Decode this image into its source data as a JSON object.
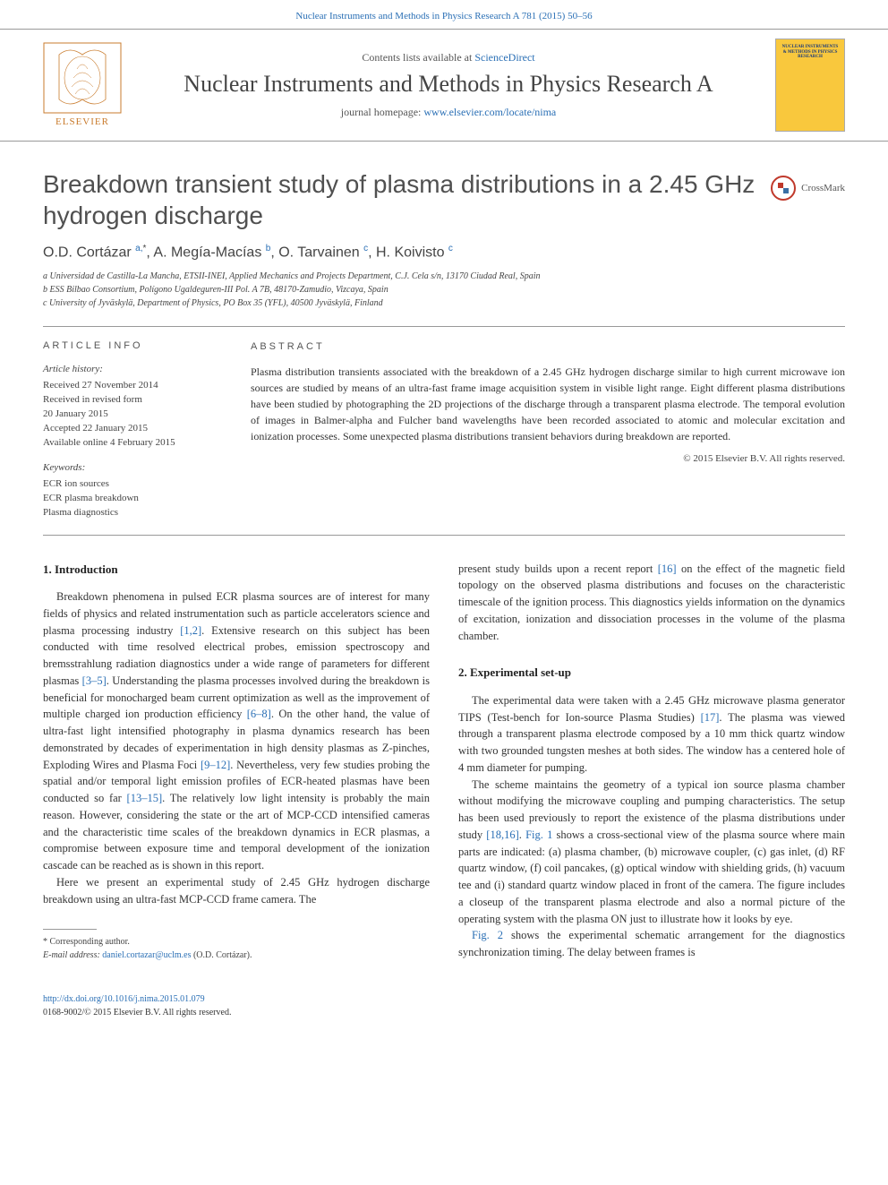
{
  "header_link": "Nuclear Instruments and Methods in Physics Research A 781 (2015) 50–56",
  "masthead": {
    "contents_prefix": "Contents lists available at ",
    "contents_link": "ScienceDirect",
    "journal_name": "Nuclear Instruments and Methods in Physics Research A",
    "homepage_prefix": "journal homepage: ",
    "homepage_url": "www.elsevier.com/locate/nima",
    "publisher": "ELSEVIER",
    "cover_text": "NUCLEAR INSTRUMENTS & METHODS IN PHYSICS RESEARCH"
  },
  "article": {
    "title": "Breakdown transient study of plasma distributions in a 2.45 GHz hydrogen discharge",
    "crossmark_label": "CrossMark",
    "authors_html": "O.D. Cortázar <sup><a class='ref'>a,</a>*</sup>, A. Megía-Macías <sup><a class='ref'>b</a></sup>, O. Tarvainen <sup><a class='ref'>c</a></sup>, H. Koivisto <sup><a class='ref'>c</a></sup>",
    "affiliations": [
      "a Universidad de Castilla-La Mancha, ETSII-INEI, Applied Mechanics and Projects Department, C.J. Cela s/n, 13170 Ciudad Real, Spain",
      "b ESS Bilbao Consortium, Polígono Ugaldeguren-III Pol. A 7B, 48170-Zamudio, Vizcaya, Spain",
      "c University of Jyväskylä, Department of Physics, PO Box 35 (YFL), 40500 Jyväskylä, Finland"
    ]
  },
  "info": {
    "left_heading": "article info",
    "history_label": "Article history:",
    "history": [
      "Received 27 November 2014",
      "Received in revised form",
      "20 January 2015",
      "Accepted 22 January 2015",
      "Available online 4 February 2015"
    ],
    "keywords_label": "Keywords:",
    "keywords": [
      "ECR ion sources",
      "ECR plasma breakdown",
      "Plasma diagnostics"
    ],
    "right_heading": "abstract",
    "abstract": "Plasma distribution transients associated with the breakdown of a 2.45 GHz hydrogen discharge similar to high current microwave ion sources are studied by means of an ultra-fast frame image acquisition system in visible light range. Eight different plasma distributions have been studied by photographing the 2D projections of the discharge through a transparent plasma electrode. The temporal evolution of images in Balmer-alpha and Fulcher band wavelengths have been recorded associated to atomic and molecular excitation and ionization processes. Some unexpected plasma distributions transient behaviors during breakdown are reported.",
    "copyright": "© 2015 Elsevier B.V. All rights reserved."
  },
  "body": {
    "sec1_heading": "1.  Introduction",
    "sec1_p1": "Breakdown phenomena in pulsed ECR plasma sources are of interest for many fields of physics and related instrumentation such as particle accelerators science and plasma processing industry [1,2]. Extensive research on this subject has been conducted with time resolved electrical probes, emission spectroscopy and bremsstrahlung radiation diagnostics under a wide range of parameters for different plasmas [3–5]. Understanding the plasma processes involved during the breakdown is beneficial for monocharged beam current optimization as well as the improvement of multiple charged ion production efficiency [6–8]. On the other hand, the value of ultra-fast light intensified photography in plasma dynamics research has been demonstrated by decades of experimentation in high density plasmas as Z-pinches, Exploding Wires and Plasma Foci [9–12]. Nevertheless, very few studies probing the spatial and/or temporal light emission profiles of ECR-heated plasmas have been conducted so far [13–15]. The relatively low light intensity is probably the main reason. However, considering the state or the art of MCP-CCD intensified cameras and the characteristic time scales of the breakdown dynamics in ECR plasmas, a compromise between exposure time and temporal development of the ionization cascade can be reached as is shown in this report.",
    "sec1_p2": "Here we present an experimental study of 2.45 GHz hydrogen discharge breakdown using an ultra-fast MCP-CCD frame camera. The",
    "sec1_p3": "present study builds upon a recent report [16] on the effect of the magnetic field topology on the observed plasma distributions and focuses on the characteristic timescale of the ignition process. This diagnostics yields information on the dynamics of excitation, ionization and dissociation processes in the volume of the plasma chamber.",
    "sec2_heading": "2.  Experimental set-up",
    "sec2_p1": "The experimental data were taken with a 2.45 GHz microwave plasma generator TIPS (Test-bench for Ion-source Plasma Studies) [17]. The plasma was viewed through a transparent plasma electrode composed by a 10 mm thick quartz window with two grounded tungsten meshes at both sides. The window has a centered hole of 4 mm diameter for pumping.",
    "sec2_p2": "The scheme maintains the geometry of a typical ion source plasma chamber without modifying the microwave coupling and pumping characteristics. The setup has been used previously to report the existence of the plasma distributions under study [18,16]. Fig. 1 shows a cross-sectional view of the plasma source where main parts are indicated: (a) plasma chamber, (b) microwave coupler, (c) gas inlet, (d) RF quartz window, (f) coil pancakes, (g) optical window with shielding grids, (h) vacuum tee and (i) standard quartz window placed in front of the camera. The figure includes a closeup of the transparent plasma electrode and also a normal picture of the operating system with the plasma ON just to illustrate how it looks by eye.",
    "sec2_p3": "Fig. 2 shows the experimental schematic arrangement for the diagnostics synchronization timing. The delay between frames is"
  },
  "footnote": {
    "corr": "* Corresponding author.",
    "email_label": "E-mail address: ",
    "email": "daniel.cortazar@uclm.es",
    "email_suffix": " (O.D. Cortázar)."
  },
  "footer": {
    "doi": "http://dx.doi.org/10.1016/j.nima.2015.01.079",
    "issn_line": "0168-9002/© 2015 Elsevier B.V. All rights reserved."
  },
  "colors": {
    "link": "#2a6fb5",
    "text": "#333333",
    "heading": "#505050",
    "rule": "#999999",
    "cover_bg": "#f9c83d",
    "crossmark_ring": "#c0392b"
  }
}
